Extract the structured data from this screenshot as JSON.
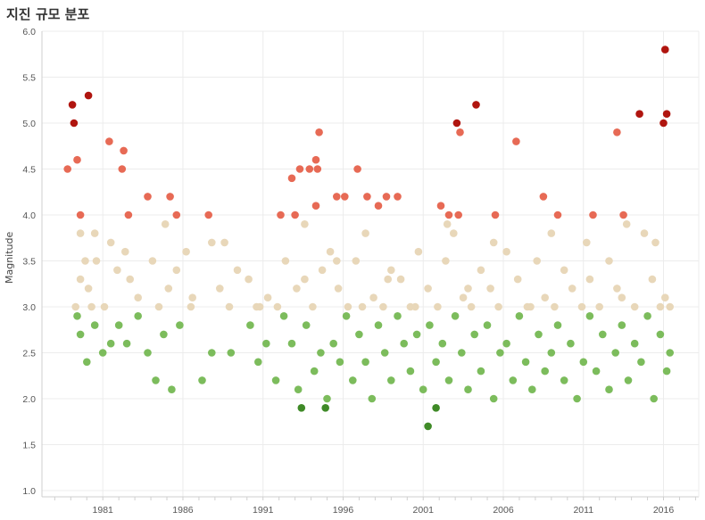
{
  "chart_data": {
    "type": "scatter",
    "title": "지진 규모 분포",
    "ylabel": "Magnitude",
    "xlabel": "",
    "ylim": [
      1.0,
      6.0
    ],
    "xlim": [
      1977.2,
      2018.2
    ],
    "y_ticks": [
      "1.0",
      "1.5",
      "2.0",
      "2.5",
      "3.0",
      "3.5",
      "4.0",
      "4.5",
      "5.0",
      "5.5",
      "6.0"
    ],
    "x_ticks": [
      "1981",
      "1986",
      "1991",
      "1996",
      "2001",
      "2006",
      "2011",
      "2016"
    ],
    "grid": true,
    "legend": "none",
    "colors": {
      "lt3": "#7cbc5c",
      "3to4": "#e8d7b9",
      "4to5": "#e76a55",
      "ge5": "#b0150f",
      "dark": "#3f8a27",
      "grid": "#ececec",
      "axis": "#cfcfcf"
    },
    "series": [
      {
        "name": "",
        "color_key": "dark",
        "x": [
          1993.4,
          1994.9,
          2001.3,
          2001.8
        ],
        "y": [
          1.9,
          1.9,
          1.7,
          1.9
        ]
      },
      {
        "name": "",
        "color_key": "ge5",
        "x": [
          1979.1,
          1979.2,
          1980.1,
          2003.1,
          2004.3,
          2014.5,
          2016.0,
          2016.1,
          2016.2
        ],
        "y": [
          5.2,
          5.0,
          5.3,
          5.0,
          5.2,
          5.1,
          5.0,
          5.8,
          5.1
        ],
        "values_note": ""
      },
      {
        "name": "",
        "color_key": "4to5",
        "x": [
          1978.8,
          1979.4,
          1979.6,
          1981.4,
          1982.3,
          1982.2,
          1982.6,
          1983.8,
          1985.2,
          1985.6,
          1987.6,
          1992.1,
          1992.8,
          1993.0,
          1993.3,
          1993.9,
          1994.3,
          1994.4,
          1994.5,
          1994.3,
          1995.6,
          1996.1,
          1996.9,
          1997.5,
          1998.2,
          1998.7,
          1999.4,
          2002.1,
          2002.6,
          2003.2,
          2003.3,
          2005.5,
          2006.8,
          2008.5,
          2009.4,
          2011.6,
          2013.1,
          2013.5
        ],
        "y": [
          4.5,
          4.6,
          4.0,
          4.8,
          4.7,
          4.5,
          4.0,
          4.2,
          4.2,
          4.0,
          4.0,
          4.0,
          4.4,
          4.0,
          4.5,
          4.5,
          4.6,
          4.5,
          4.9,
          4.1,
          4.2,
          4.2,
          4.5,
          4.2,
          4.1,
          4.2,
          4.2,
          4.1,
          4.0,
          4.0,
          4.9,
          4.0,
          4.8,
          4.2,
          4.0,
          4.0,
          4.9,
          4.0
        ]
      },
      {
        "name": "",
        "color_key": "3to4",
        "x": [
          1979.3,
          1979.6,
          1979.6,
          1979.9,
          1980.1,
          1980.3,
          1980.6,
          1981.1,
          1981.5,
          1981.9,
          1982.4,
          1983.2,
          1984.1,
          1984.5,
          1985.1,
          1985.6,
          1986.2,
          1986.5,
          1987.8,
          1988.3,
          1988.9,
          1989.4,
          1990.1,
          1990.6,
          1991.3,
          1991.9,
          1992.4,
          1993.1,
          1993.6,
          1994.1,
          1994.7,
          1995.2,
          1995.7,
          1996.3,
          1996.8,
          1997.4,
          1997.9,
          1998.5,
          1999.0,
          1999.6,
          2000.2,
          2000.7,
          2001.3,
          2001.9,
          2002.4,
          2002.9,
          2003.5,
          2004.0,
          2004.6,
          2005.2,
          2005.7,
          2006.2,
          2006.9,
          2007.5,
          2008.1,
          2008.6,
          2009.2,
          2009.8,
          2010.3,
          2010.9,
          2011.4,
          2012.0,
          2012.6,
          2013.1,
          2013.7,
          2014.2,
          2014.8,
          2015.3,
          2015.8,
          2016.1,
          2016.4,
          1980.5,
          1982.7,
          1984.9,
          1986.6,
          1988.6,
          1990.8,
          1993.6,
          1995.6,
          1997.2,
          1998.8,
          2000.5,
          2002.5,
          2003.8,
          2005.4,
          2007.7,
          2009.0,
          2011.2,
          2013.4,
          2015.5
        ],
        "y": [
          3.0,
          3.3,
          3.8,
          3.5,
          3.2,
          3.0,
          3.5,
          3.0,
          3.7,
          3.4,
          3.6,
          3.1,
          3.5,
          3.0,
          3.2,
          3.4,
          3.6,
          3.0,
          3.7,
          3.2,
          3.0,
          3.4,
          3.3,
          3.0,
          3.1,
          3.0,
          3.5,
          3.2,
          3.9,
          3.0,
          3.4,
          3.6,
          3.2,
          3.0,
          3.5,
          3.8,
          3.1,
          3.0,
          3.4,
          3.3,
          3.0,
          3.6,
          3.2,
          3.0,
          3.5,
          3.8,
          3.1,
          3.0,
          3.4,
          3.2,
          3.0,
          3.6,
          3.3,
          3.0,
          3.5,
          3.1,
          3.0,
          3.4,
          3.2,
          3.0,
          3.3,
          3.0,
          3.5,
          3.2,
          3.9,
          3.0,
          3.8,
          3.3,
          3.0,
          3.1,
          3.0,
          3.8,
          3.3,
          3.9,
          3.1,
          3.7,
          3.0,
          3.3,
          3.5,
          3.0,
          3.3,
          3.0,
          3.9,
          3.2,
          3.7,
          3.0,
          3.8,
          3.7,
          3.1,
          3.7
        ]
      },
      {
        "name": "",
        "color_key": "lt3",
        "x": [
          1979.4,
          1979.6,
          1980.0,
          1980.5,
          1981.0,
          1981.5,
          1982.0,
          1982.5,
          1983.2,
          1983.8,
          1984.3,
          1984.8,
          1985.3,
          1985.8,
          1987.2,
          1987.8,
          1989.0,
          1990.2,
          1990.7,
          1991.2,
          1991.8,
          1992.3,
          1992.8,
          1993.2,
          1993.7,
          1994.2,
          1994.6,
          1995.0,
          1995.4,
          1995.8,
          1996.2,
          1996.6,
          1997.0,
          1997.4,
          1997.8,
          1998.2,
          1998.6,
          1999.0,
          1999.4,
          1999.8,
          2000.2,
          2000.6,
          2001.0,
          2001.4,
          2001.8,
          2002.2,
          2002.6,
          2003.0,
          2003.4,
          2003.8,
          2004.2,
          2004.6,
          2005.0,
          2005.4,
          2005.8,
          2006.2,
          2006.6,
          2007.0,
          2007.4,
          2007.8,
          2008.2,
          2008.6,
          2009.0,
          2009.4,
          2009.8,
          2010.2,
          2010.6,
          2011.0,
          2011.4,
          2011.8,
          2012.2,
          2012.6,
          2013.0,
          2013.4,
          2013.8,
          2014.2,
          2014.6,
          2015.0,
          2015.4,
          2015.8,
          2016.2,
          2016.4
        ],
        "y": [
          2.9,
          2.7,
          2.4,
          2.8,
          2.5,
          2.6,
          2.8,
          2.6,
          2.9,
          2.5,
          2.2,
          2.7,
          2.1,
          2.8,
          2.2,
          2.5,
          2.5,
          2.8,
          2.4,
          2.6,
          2.2,
          2.9,
          2.6,
          2.1,
          2.8,
          2.3,
          2.5,
          2.0,
          2.6,
          2.4,
          2.9,
          2.2,
          2.7,
          2.4,
          2.0,
          2.8,
          2.5,
          2.2,
          2.9,
          2.6,
          2.3,
          2.7,
          2.1,
          2.8,
          2.4,
          2.6,
          2.2,
          2.9,
          2.5,
          2.1,
          2.7,
          2.3,
          2.8,
          2.0,
          2.5,
          2.6,
          2.2,
          2.9,
          2.4,
          2.1,
          2.7,
          2.3,
          2.5,
          2.8,
          2.2,
          2.6,
          2.0,
          2.4,
          2.9,
          2.3,
          2.7,
          2.1,
          2.5,
          2.8,
          2.2,
          2.6,
          2.4,
          2.9,
          2.0,
          2.7,
          2.3,
          2.5
        ]
      }
    ]
  }
}
